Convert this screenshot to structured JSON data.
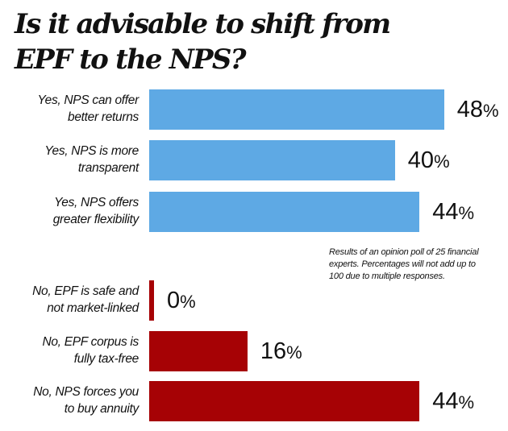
{
  "chart_data": {
    "type": "bar",
    "orientation": "horizontal",
    "title": "Is it advisable to shift from EPF to the NPS?",
    "title_lines": [
      "Is it advisable to shift from",
      "EPF to the NPS?"
    ],
    "categories": [
      [
        "Yes, NPS can offer",
        "better returns"
      ],
      [
        "Yes, NPS is more",
        "transparent"
      ],
      [
        "Yes, NPS offers",
        "greater flexibility"
      ],
      [
        "No, EPF is safe and",
        "not market-linked"
      ],
      [
        "No, EPF corpus is",
        "fully tax-free"
      ],
      [
        "No, NPS forces you",
        "to buy annuity"
      ]
    ],
    "values": [
      48,
      40,
      44,
      0,
      16,
      44
    ],
    "value_labels": [
      "48",
      "40",
      "44",
      "0",
      "16",
      "44"
    ],
    "unit": "%",
    "groups": [
      "yes",
      "yes",
      "yes",
      "no",
      "no",
      "no"
    ],
    "colors": {
      "yes": "#5ea9e4",
      "no": "#a60205"
    },
    "grid": false,
    "note": "Results of an opinion poll of 25 financial experts. Percentages will not add up to 100 due to multiple  responses."
  }
}
